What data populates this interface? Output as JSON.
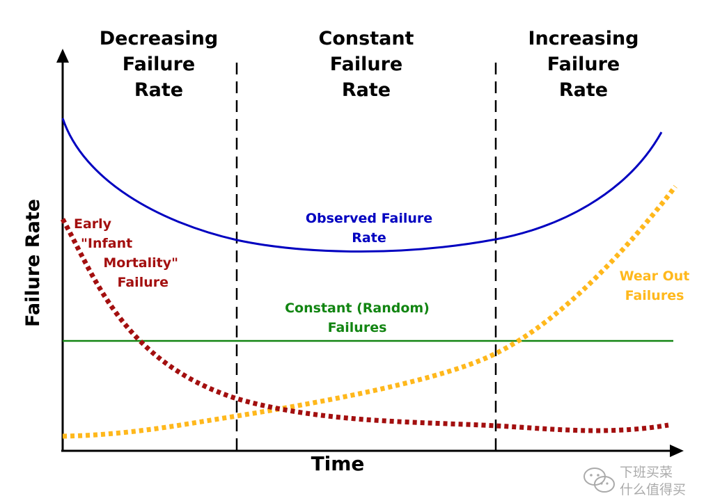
{
  "phases": [
    {
      "name": "decreasing",
      "lines": [
        "Decreasing",
        "Failure",
        "Rate"
      ]
    },
    {
      "name": "constant",
      "lines": [
        "Constant",
        "Failure",
        "Rate"
      ]
    },
    {
      "name": "increasing",
      "lines": [
        "Increasing",
        "Failure",
        "Rate"
      ]
    }
  ],
  "axes": {
    "x_title": "Time",
    "y_title": "Failure Rate"
  },
  "curves": {
    "observed": {
      "label_lines": [
        "Observed Failure",
        "Rate"
      ],
      "color": "#0000c0"
    },
    "infant": {
      "label_lines": [
        "Early",
        "\"Infant",
        "Mortality\"",
        "Failure"
      ],
      "color": "#a30f0f"
    },
    "random": {
      "label_lines": [
        "Constant (Random)",
        "Failures"
      ],
      "color": "#128512"
    },
    "wearout": {
      "label_lines": [
        "Wear Out",
        "Failures"
      ],
      "color": "#ffb81c"
    }
  },
  "watermark": {
    "line1": "下班买菜",
    "line2": "什么值得买"
  }
}
